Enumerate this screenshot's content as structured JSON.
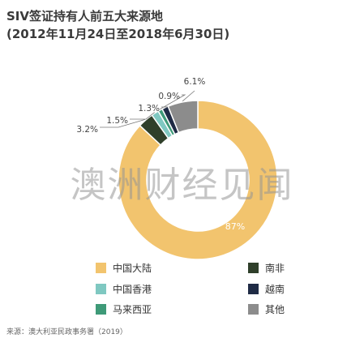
{
  "title": "SIV签证持有人前五大来源地",
  "subtitle": "(2012年11月24日至2018年6月30日)",
  "watermark": "澳洲财经见闻",
  "source": "来源：澳大利亚民政事务署（2019）",
  "chart_data": {
    "type": "pie",
    "variant": "donut",
    "title": "SIV签证持有人前五大来源地",
    "subtitle": "(2012年11月24日至2018年6月30日)",
    "slices": [
      {
        "name": "中国大陆",
        "value": 87,
        "label": "87%",
        "color": "#F2C46E"
      },
      {
        "name": "南非",
        "value": 3.2,
        "label": "3.2%",
        "color": "#2F3F2A"
      },
      {
        "name": "中国香港",
        "value": 1.5,
        "label": "1.5%",
        "color": "#7FC8C1"
      },
      {
        "name": "越南",
        "value": 1.3,
        "label": "1.3%",
        "color": "#1F2B45"
      },
      {
        "name": "马来西亚",
        "value": 0.9,
        "label": "0.9%",
        "color": "#3E9A78"
      },
      {
        "name": "其他",
        "value": 6.1,
        "label": "6.1%",
        "color": "#8C8C8C"
      }
    ],
    "legend": [
      {
        "name": "中国大陆",
        "color": "#F2C46E"
      },
      {
        "name": "南非",
        "color": "#2F3F2A"
      },
      {
        "name": "中国香港",
        "color": "#7FC8C1"
      },
      {
        "name": "越南",
        "color": "#1F2B45"
      },
      {
        "name": "马来西亚",
        "color": "#3E9A78"
      },
      {
        "name": "其他",
        "color": "#8C8C8C"
      }
    ],
    "legend_placement": "bottom"
  }
}
